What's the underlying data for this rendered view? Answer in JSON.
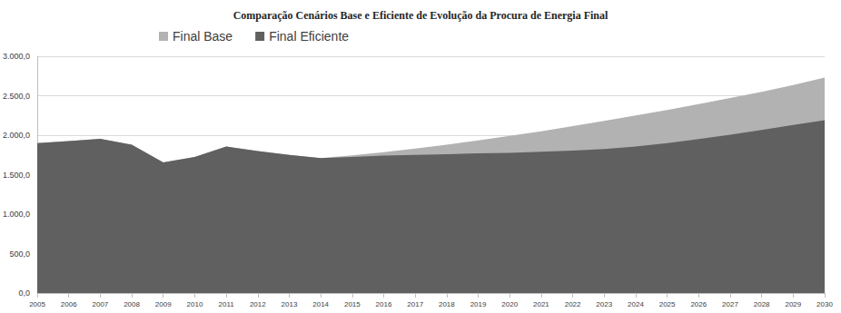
{
  "chart_data": {
    "type": "area",
    "title": "Comparação Cenários Base e Eficiente de Evolução da Procura de Energia Final",
    "categories": [
      "2005",
      "2006",
      "2007",
      "2008",
      "2009",
      "2010",
      "2011",
      "2012",
      "2013",
      "2014",
      "2015",
      "2016",
      "2017",
      "2018",
      "2019",
      "2020",
      "2021",
      "2022",
      "2023",
      "2024",
      "2025",
      "2026",
      "2027",
      "2028",
      "2029",
      "2030"
    ],
    "series": [
      {
        "name": "Final Base",
        "color": "#b2b2b2",
        "values": [
          1900,
          1925,
          1955,
          1880,
          1655,
          1725,
          1855,
          1800,
          1750,
          1710,
          1745,
          1785,
          1830,
          1880,
          1935,
          1990,
          2050,
          2115,
          2180,
          2250,
          2320,
          2395,
          2470,
          2550,
          2635,
          2730
        ]
      },
      {
        "name": "Final Eficiente",
        "color": "#606060",
        "values": [
          1900,
          1925,
          1955,
          1880,
          1655,
          1725,
          1855,
          1800,
          1750,
          1710,
          1725,
          1740,
          1750,
          1760,
          1770,
          1775,
          1790,
          1805,
          1825,
          1855,
          1900,
          1950,
          2005,
          2065,
          2130,
          2190
        ]
      }
    ],
    "ylim": [
      0,
      3000
    ],
    "yticks": [
      {
        "value": 0,
        "label": "0,0"
      },
      {
        "value": 500,
        "label": "500,0"
      },
      {
        "value": 1000,
        "label": "1.000,0"
      },
      {
        "value": 1500,
        "label": "1.500,0"
      },
      {
        "value": 2000,
        "label": "2.000,0"
      },
      {
        "value": 2500,
        "label": "2.500,0"
      },
      {
        "value": 3000,
        "label": "3.000,0"
      }
    ],
    "grid": true,
    "legend": "top",
    "stacked": false
  }
}
